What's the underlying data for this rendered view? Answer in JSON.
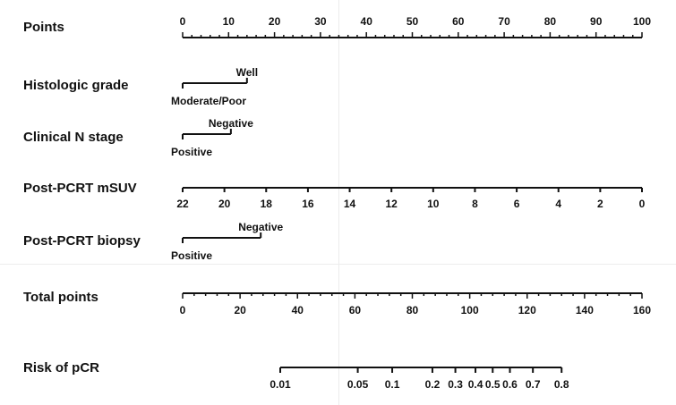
{
  "rows": {
    "points": {
      "label": "Points"
    },
    "histologic_grade": {
      "label": "Histologic grade",
      "levels": [
        "Well",
        "Moderate/Poor"
      ]
    },
    "clinical_n_stage": {
      "label": "Clinical N stage",
      "levels": [
        "Negative",
        "Positive"
      ]
    },
    "post_pcrt_msuv": {
      "label": "Post-PCRT mSUV"
    },
    "post_pcrt_biopsy": {
      "label": "Post-PCRT biopsy",
      "levels": [
        "Negative",
        "Positive"
      ]
    },
    "total_points": {
      "label": "Total points"
    },
    "risk_of_pcr": {
      "label": "Risk of pCR"
    }
  },
  "chart_data": {
    "type": "nomogram",
    "title": "",
    "scales": [
      {
        "name": "Points",
        "min": 0,
        "max": 100,
        "major_ticks": [
          0,
          10,
          20,
          30,
          40,
          50,
          60,
          70,
          80,
          90,
          100
        ],
        "minor_step": 2
      },
      {
        "name": "Histologic grade",
        "levels": [
          {
            "label": "Moderate/Poor",
            "points": 0
          },
          {
            "label": "Well",
            "points": 14
          }
        ]
      },
      {
        "name": "Clinical N stage",
        "levels": [
          {
            "label": "Positive",
            "points": 0
          },
          {
            "label": "Negative",
            "points": 10.5
          }
        ]
      },
      {
        "name": "Post-PCRT mSUV",
        "ticks": [
          22,
          20,
          18,
          16,
          14,
          12,
          10,
          8,
          6,
          4,
          2,
          0
        ],
        "points_range": [
          0,
          100
        ],
        "direction": "decreasing"
      },
      {
        "name": "Post-PCRT biopsy",
        "levels": [
          {
            "label": "Positive",
            "points": 0
          },
          {
            "label": "Negative",
            "points": 17
          }
        ]
      },
      {
        "name": "Total points",
        "min": 0,
        "max": 160,
        "major_ticks": [
          0,
          20,
          40,
          60,
          80,
          100,
          120,
          140,
          160
        ],
        "minor_step": 4
      },
      {
        "name": "Risk of pCR",
        "ticks": [
          {
            "label": "0.01",
            "total_points": 34
          },
          {
            "label": "0.05",
            "total_points": 61
          },
          {
            "label": "0.1",
            "total_points": 73
          },
          {
            "label": "0.2",
            "total_points": 87
          },
          {
            "label": "0.3",
            "total_points": 95
          },
          {
            "label": "0.4",
            "total_points": 102
          },
          {
            "label": "0.5",
            "total_points": 108
          },
          {
            "label": "0.6",
            "total_points": 114
          },
          {
            "label": "0.7",
            "total_points": 122
          },
          {
            "label": "0.8",
            "total_points": 132
          }
        ]
      }
    ]
  }
}
